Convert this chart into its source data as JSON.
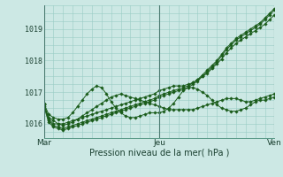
{
  "title": "",
  "xlabel": "Pression niveau de la mer( hPa )",
  "ylabel": "",
  "bg_color": "#cce8e4",
  "plot_bg_color": "#cce8e4",
  "grid_color": "#99ccc4",
  "line_color": "#1a5c1a",
  "marker_color": "#1a5c1a",
  "ylim": [
    1015.55,
    1019.75
  ],
  "yticks": [
    1016,
    1017,
    1018,
    1019
  ],
  "xtick_labels": [
    "Mar",
    "Jeu",
    "Ven"
  ],
  "xtick_positions": [
    0,
    24,
    48
  ],
  "vline_positions": [
    0,
    24,
    48
  ],
  "n_points": 49,
  "series": [
    [
      1016.65,
      1016.1,
      1015.95,
      1015.9,
      1015.85,
      1015.9,
      1015.95,
      1016.0,
      1016.05,
      1016.1,
      1016.15,
      1016.2,
      1016.25,
      1016.3,
      1016.35,
      1016.4,
      1016.45,
      1016.5,
      1016.55,
      1016.6,
      1016.65,
      1016.7,
      1016.75,
      1016.8,
      1016.9,
      1016.95,
      1017.0,
      1017.05,
      1017.1,
      1017.15,
      1017.2,
      1017.3,
      1017.4,
      1017.55,
      1017.7,
      1017.85,
      1018.0,
      1018.2,
      1018.4,
      1018.55,
      1018.7,
      1018.8,
      1018.9,
      1019.0,
      1019.1,
      1019.2,
      1019.35,
      1019.5,
      1019.65
    ],
    [
      1016.55,
      1016.05,
      1015.9,
      1015.85,
      1015.8,
      1015.85,
      1015.9,
      1015.95,
      1016.0,
      1016.05,
      1016.1,
      1016.15,
      1016.2,
      1016.25,
      1016.3,
      1016.35,
      1016.4,
      1016.45,
      1016.5,
      1016.55,
      1016.6,
      1016.65,
      1016.7,
      1016.75,
      1016.85,
      1016.9,
      1016.95,
      1017.0,
      1017.05,
      1017.1,
      1017.15,
      1017.25,
      1017.35,
      1017.5,
      1017.65,
      1017.8,
      1017.95,
      1018.15,
      1018.35,
      1018.5,
      1018.65,
      1018.75,
      1018.85,
      1018.95,
      1019.05,
      1019.15,
      1019.3,
      1019.45,
      1019.6
    ],
    [
      1016.6,
      1016.15,
      1016.0,
      1016.0,
      1016.0,
      1016.05,
      1016.1,
      1016.15,
      1016.2,
      1016.25,
      1016.3,
      1016.35,
      1016.4,
      1016.45,
      1016.5,
      1016.55,
      1016.6,
      1016.65,
      1016.7,
      1016.75,
      1016.8,
      1016.85,
      1016.9,
      1016.95,
      1017.05,
      1017.1,
      1017.15,
      1017.2,
      1017.2,
      1017.2,
      1017.25,
      1017.3,
      1017.4,
      1017.5,
      1017.6,
      1017.75,
      1017.9,
      1018.05,
      1018.25,
      1018.4,
      1018.55,
      1018.65,
      1018.75,
      1018.85,
      1018.95,
      1019.05,
      1019.15,
      1019.3,
      1019.45
    ],
    [
      1016.6,
      1016.2,
      1016.1,
      1016.0,
      1015.95,
      1016.0,
      1016.05,
      1016.15,
      1016.25,
      1016.35,
      1016.45,
      1016.55,
      1016.65,
      1016.75,
      1016.85,
      1016.9,
      1016.95,
      1016.9,
      1016.85,
      1016.8,
      1016.75,
      1016.7,
      1016.65,
      1016.6,
      1016.55,
      1016.5,
      1016.45,
      1016.45,
      1016.45,
      1016.45,
      1016.45,
      1016.45,
      1016.5,
      1016.55,
      1016.6,
      1016.65,
      1016.7,
      1016.75,
      1016.8,
      1016.8,
      1016.8,
      1016.75,
      1016.7,
      1016.7,
      1016.75,
      1016.8,
      1016.85,
      1016.9,
      1016.95
    ],
    [
      1016.65,
      1016.3,
      1016.2,
      1016.15,
      1016.15,
      1016.2,
      1016.35,
      1016.55,
      1016.75,
      1016.95,
      1017.1,
      1017.2,
      1017.15,
      1016.95,
      1016.7,
      1016.5,
      1016.35,
      1016.25,
      1016.2,
      1016.2,
      1016.25,
      1016.3,
      1016.35,
      1016.35,
      1016.35,
      1016.4,
      1016.5,
      1016.65,
      1016.85,
      1017.05,
      1017.15,
      1017.15,
      1017.1,
      1017.0,
      1016.9,
      1016.75,
      1016.6,
      1016.5,
      1016.45,
      1016.4,
      1016.4,
      1016.45,
      1016.5,
      1016.6,
      1016.7,
      1016.75,
      1016.75,
      1016.8,
      1016.85
    ]
  ]
}
